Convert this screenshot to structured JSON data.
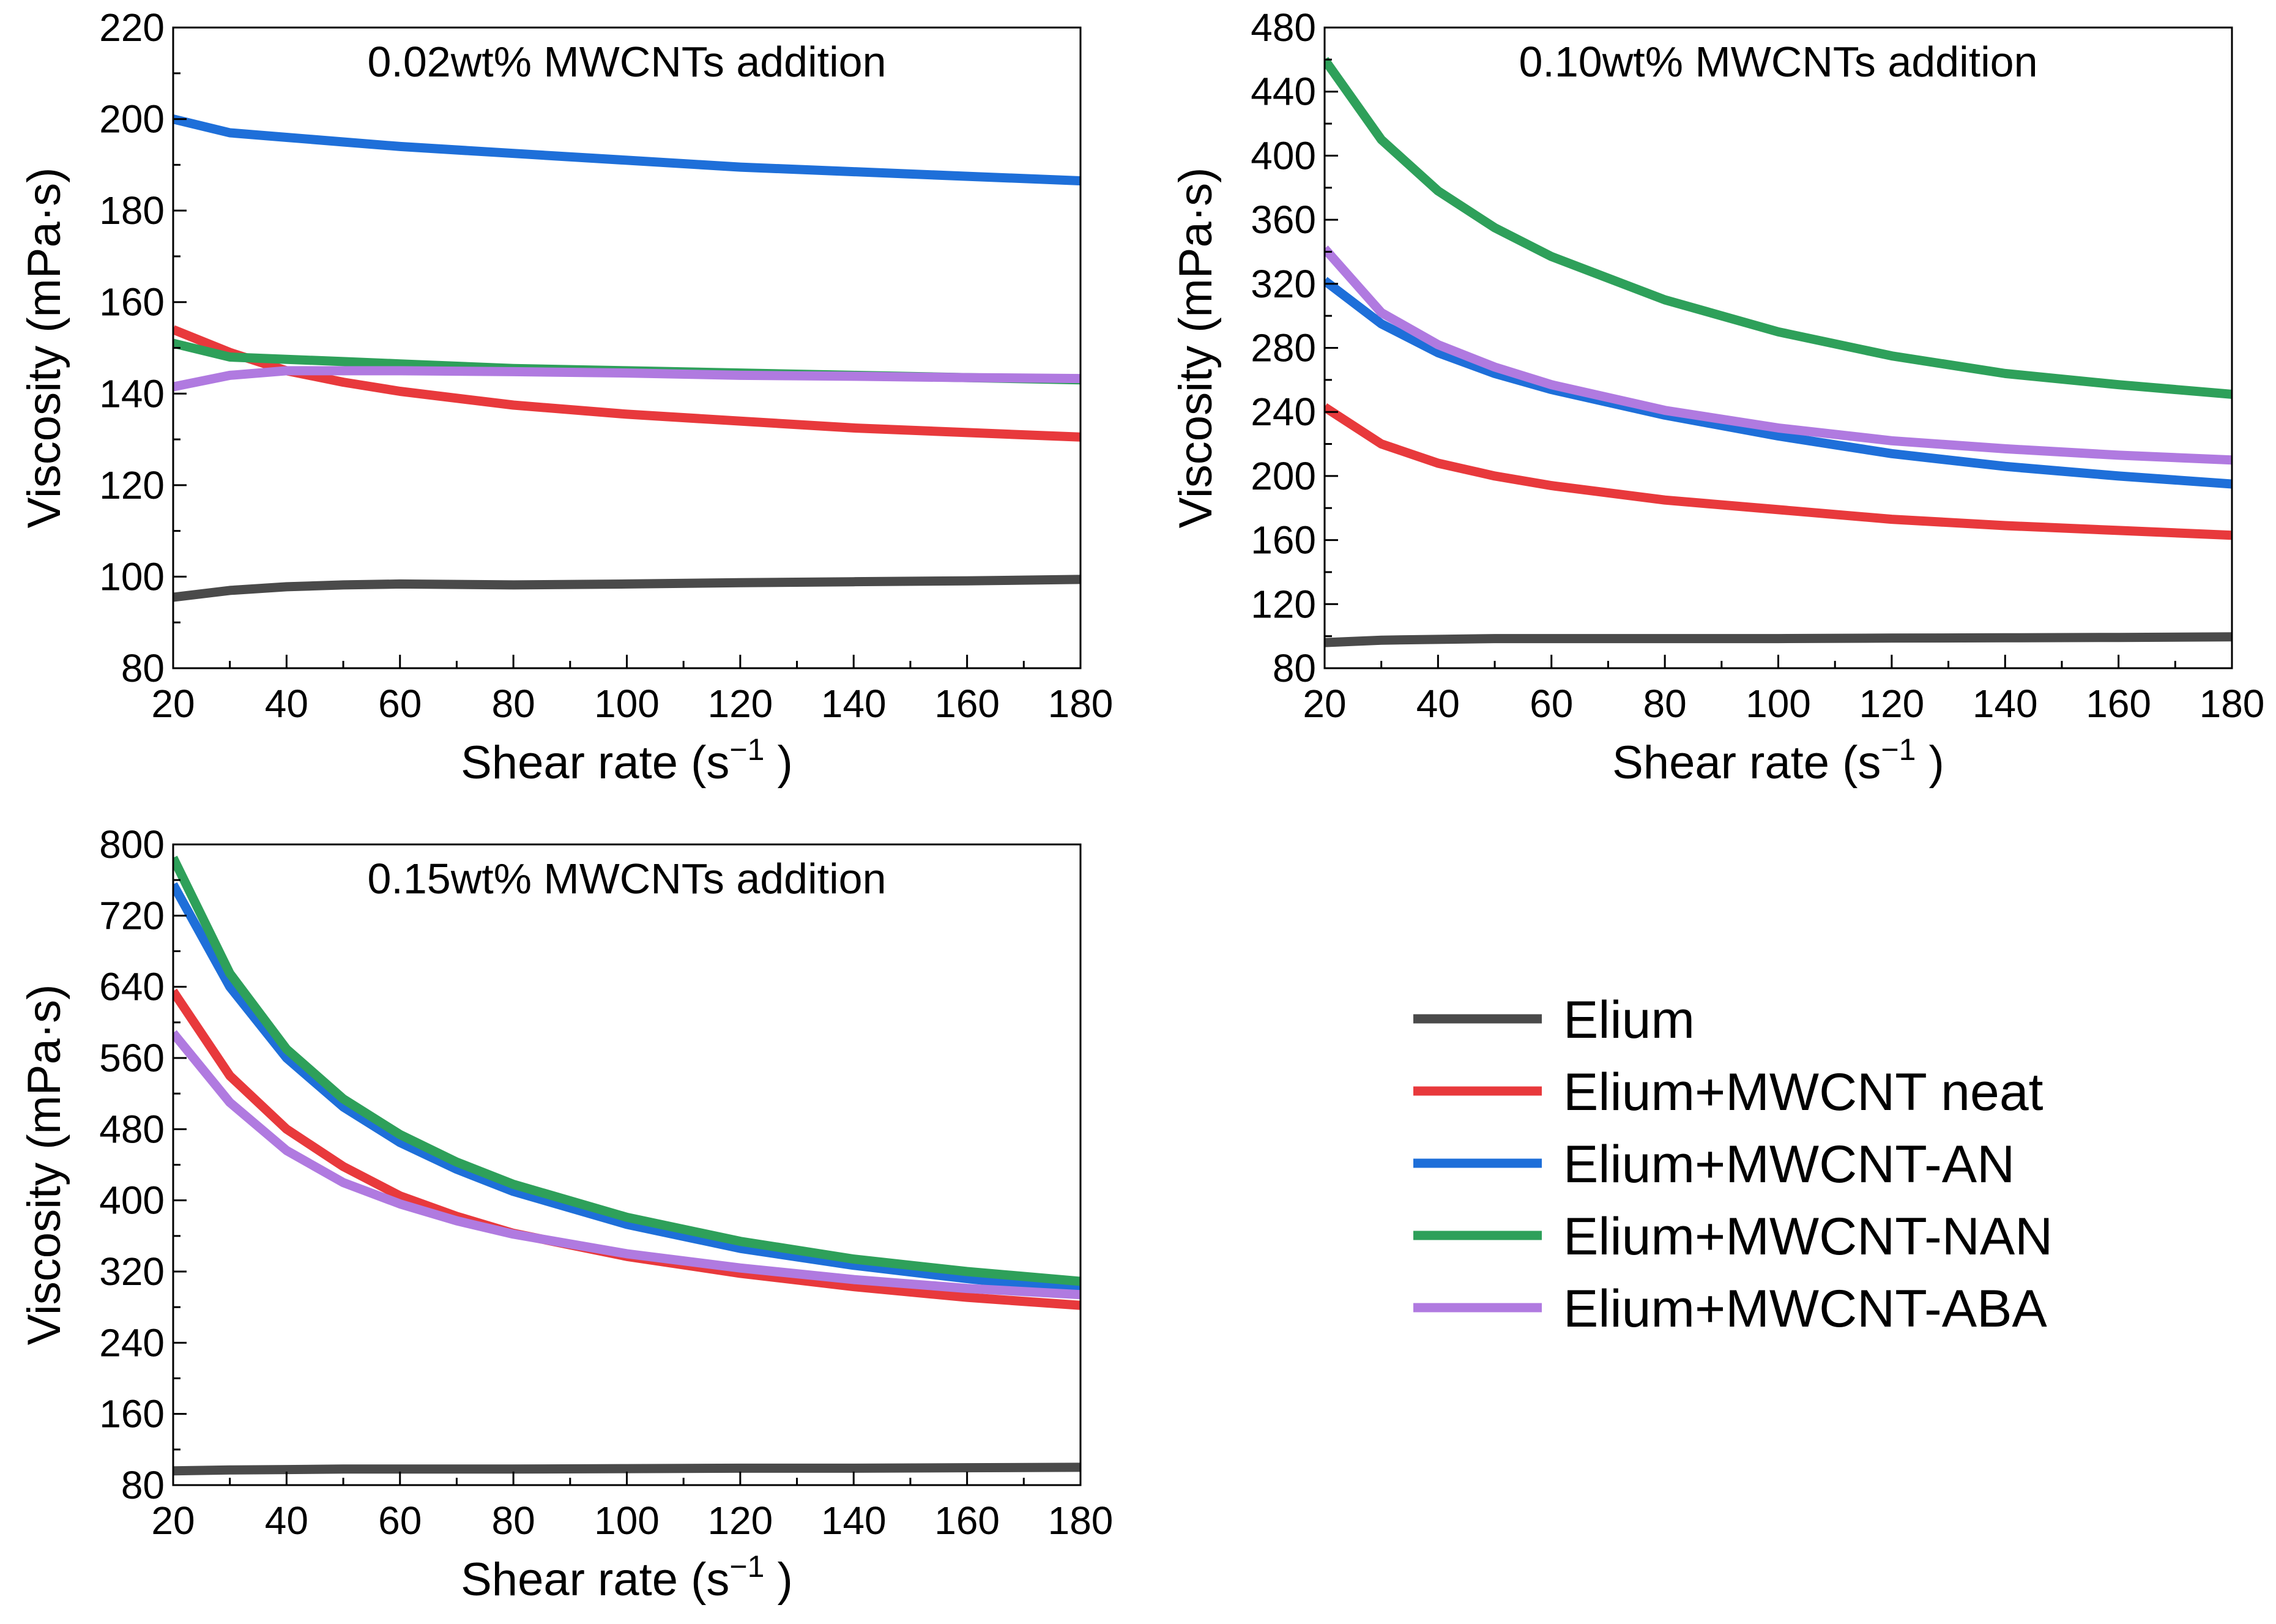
{
  "legend": {
    "items": [
      {
        "label": "Elium",
        "color": "#4a4a4a"
      },
      {
        "label": "Elium+MWCNT neat",
        "color": "#e8393c"
      },
      {
        "label": "Elium+MWCNT-AN",
        "color": "#1e6fd9"
      },
      {
        "label": "Elium+MWCNT-NAN",
        "color": "#2ea05a"
      },
      {
        "label": "Elium+MWCNT-ABA",
        "color": "#b07ae0"
      }
    ]
  },
  "chart_data": [
    {
      "type": "line",
      "title": "0.02wt% MWCNTs addition",
      "xlabel": "Shear rate (s",
      "xlabel_sup": "−1",
      "xlabel_end": ")",
      "ylabel": "Viscosity (mPa·s)",
      "xlim": [
        20,
        180
      ],
      "ylim": [
        80,
        220
      ],
      "xticks": [
        20,
        40,
        60,
        80,
        100,
        120,
        140,
        160,
        180
      ],
      "yticks": [
        80,
        100,
        120,
        140,
        160,
        180,
        200,
        220
      ],
      "x": [
        20,
        30,
        40,
        50,
        60,
        80,
        100,
        120,
        140,
        160,
        180
      ],
      "series": [
        {
          "name": "Elium",
          "values": [
            95.5,
            97,
            97.8,
            98.2,
            98.4,
            98.2,
            98.4,
            98.7,
            98.9,
            99.1,
            99.4
          ]
        },
        {
          "name": "Elium+MWCNT neat",
          "values": [
            154,
            149,
            145,
            142.5,
            140.5,
            137.5,
            135.5,
            134,
            132.5,
            131.5,
            130.5
          ]
        },
        {
          "name": "Elium+MWCNT-AN",
          "values": [
            200,
            197,
            196,
            195,
            194,
            192.5,
            191,
            189.5,
            188.5,
            187.5,
            186.5
          ]
        },
        {
          "name": "Elium+MWCNT-NAN",
          "values": [
            151,
            148,
            147.5,
            147,
            146.5,
            145.5,
            145,
            144.5,
            144,
            143.5,
            143
          ]
        },
        {
          "name": "Elium+MWCNT-ABA",
          "values": [
            141.5,
            144,
            145,
            145,
            145,
            144.8,
            144.5,
            144,
            143.8,
            143.5,
            143.3
          ]
        }
      ]
    },
    {
      "type": "line",
      "title": "0.10wt% MWCNTs addition",
      "xlabel": "Shear rate (s",
      "xlabel_sup": "−1",
      "xlabel_end": ")",
      "ylabel": "Viscosity (mPa·s)",
      "xlim": [
        20,
        180
      ],
      "ylim": [
        80,
        480
      ],
      "xticks": [
        20,
        40,
        60,
        80,
        100,
        120,
        140,
        160,
        180
      ],
      "yticks": [
        80,
        120,
        160,
        200,
        240,
        280,
        320,
        360,
        400,
        440,
        480
      ],
      "x": [
        20,
        30,
        40,
        50,
        60,
        80,
        100,
        120,
        140,
        160,
        180
      ],
      "series": [
        {
          "name": "Elium",
          "values": [
            96,
            97.5,
            98,
            98.5,
            98.5,
            98.5,
            98.5,
            98.8,
            99,
            99.2,
            99.6
          ]
        },
        {
          "name": "Elium+MWCNT neat",
          "values": [
            243,
            220,
            208,
            200,
            194,
            185,
            179,
            173,
            169,
            166,
            163
          ]
        },
        {
          "name": "Elium+MWCNT-AN",
          "values": [
            322,
            295,
            277,
            264,
            254,
            238,
            225,
            214,
            206,
            200,
            195
          ]
        },
        {
          "name": "Elium+MWCNT-NAN",
          "values": [
            460,
            410,
            378,
            355,
            337,
            310,
            290,
            275,
            264,
            257,
            251
          ]
        },
        {
          "name": "Elium+MWCNT-ABA",
          "values": [
            342,
            302,
            282,
            268,
            257,
            241,
            230,
            222,
            217,
            213,
            210
          ]
        }
      ]
    },
    {
      "type": "line",
      "title": "0.15wt% MWCNTs addition",
      "xlabel": "Shear rate (s",
      "xlabel_sup": "−1",
      "xlabel_end": ")",
      "ylabel": "Viscosity (mPa·s)",
      "xlim": [
        20,
        180
      ],
      "ylim": [
        80,
        800
      ],
      "xticks": [
        20,
        40,
        60,
        80,
        100,
        120,
        140,
        160,
        180
      ],
      "yticks": [
        80,
        160,
        240,
        320,
        400,
        480,
        560,
        640,
        720,
        800
      ],
      "x": [
        20,
        30,
        40,
        50,
        60,
        70,
        80,
        100,
        120,
        140,
        160,
        180
      ],
      "series": [
        {
          "name": "Elium",
          "values": [
            96,
            97,
            97.5,
            98,
            98,
            98,
            98,
            98.5,
            99,
            99,
            99.5,
            100
          ]
        },
        {
          "name": "Elium+MWCNT neat",
          "values": [
            635,
            540,
            480,
            438,
            405,
            382,
            363,
            337,
            318,
            303,
            291,
            282
          ]
        },
        {
          "name": "Elium+MWCNT-AN",
          "values": [
            755,
            640,
            560,
            505,
            465,
            435,
            410,
            373,
            346,
            327,
            312,
            299
          ]
        },
        {
          "name": "Elium+MWCNT-NAN",
          "values": [
            785,
            655,
            570,
            514,
            474,
            443,
            418,
            381,
            354,
            334,
            320,
            309
          ]
        },
        {
          "name": "Elium+MWCNT-ABA",
          "values": [
            588,
            510,
            456,
            420,
            396,
            377,
            362,
            340,
            324,
            311,
            301,
            294
          ]
        }
      ]
    }
  ]
}
